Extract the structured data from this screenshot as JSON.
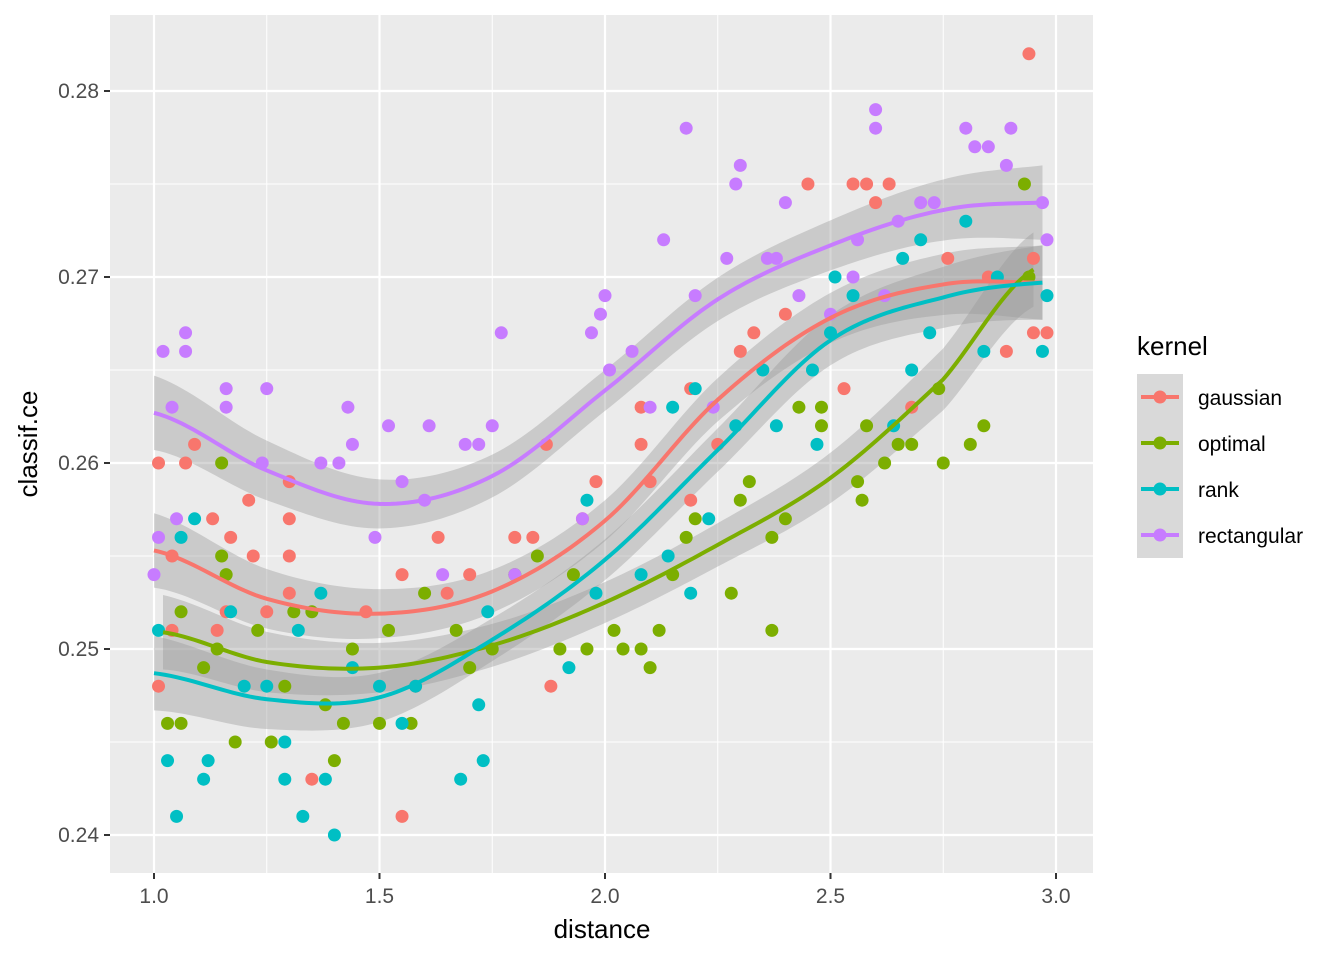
{
  "chart_data": {
    "type": "scatter",
    "title": "",
    "xlabel": "distance",
    "ylabel": "classif.ce",
    "xlim": [
      0.9,
      3.08
    ],
    "ylim": [
      0.2359,
      0.2821
    ],
    "xticks": [
      1.0,
      1.5,
      2.0,
      2.5,
      3.0
    ],
    "xtick_labels": [
      "1.0",
      "1.5",
      "2.0",
      "2.5",
      "3.0"
    ],
    "yticks": [
      0.24,
      0.25,
      0.26,
      0.27,
      0.28
    ],
    "ytick_labels": [
      "0.24",
      "0.25",
      "0.26",
      "0.27",
      "0.28"
    ],
    "grid": true,
    "legend": {
      "title": "kernel",
      "placement": "right"
    },
    "series": [
      {
        "name": "gaussian",
        "color": "#F8766D",
        "smooth": {
          "x": [
            1.0,
            1.25,
            1.5,
            1.75,
            2.0,
            2.25,
            2.5,
            2.75,
            2.97
          ],
          "y": [
            0.2553,
            0.2527,
            0.2519,
            0.2531,
            0.2569,
            0.2634,
            0.2678,
            0.2696,
            0.2697
          ]
        },
        "points": [
          [
            1.01,
            0.248
          ],
          [
            1.01,
            0.26
          ],
          [
            1.04,
            0.255
          ],
          [
            1.04,
            0.251
          ],
          [
            1.07,
            0.26
          ],
          [
            1.09,
            0.261
          ],
          [
            1.13,
            0.257
          ],
          [
            1.14,
            0.251
          ],
          [
            1.16,
            0.252
          ],
          [
            1.17,
            0.256
          ],
          [
            1.21,
            0.258
          ],
          [
            1.22,
            0.255
          ],
          [
            1.25,
            0.252
          ],
          [
            1.3,
            0.259
          ],
          [
            1.3,
            0.257
          ],
          [
            1.3,
            0.255
          ],
          [
            1.3,
            0.253
          ],
          [
            1.35,
            0.243
          ],
          [
            1.47,
            0.252
          ],
          [
            1.55,
            0.254
          ],
          [
            1.55,
            0.241
          ],
          [
            1.58,
            0.248
          ],
          [
            1.63,
            0.256
          ],
          [
            1.65,
            0.253
          ],
          [
            1.7,
            0.254
          ],
          [
            1.8,
            0.256
          ],
          [
            1.84,
            0.256
          ],
          [
            1.87,
            0.261
          ],
          [
            1.88,
            0.248
          ],
          [
            1.95,
            0.257
          ],
          [
            1.98,
            0.259
          ],
          [
            2.08,
            0.263
          ],
          [
            2.08,
            0.261
          ],
          [
            2.1,
            0.259
          ],
          [
            2.19,
            0.264
          ],
          [
            2.19,
            0.258
          ],
          [
            2.25,
            0.261
          ],
          [
            2.3,
            0.266
          ],
          [
            2.33,
            0.267
          ],
          [
            2.4,
            0.268
          ],
          [
            2.45,
            0.275
          ],
          [
            2.53,
            0.264
          ],
          [
            2.55,
            0.275
          ],
          [
            2.58,
            0.275
          ],
          [
            2.6,
            0.274
          ],
          [
            2.63,
            0.275
          ],
          [
            2.68,
            0.263
          ],
          [
            2.76,
            0.271
          ],
          [
            2.85,
            0.27
          ],
          [
            2.89,
            0.266
          ],
          [
            2.94,
            0.282
          ],
          [
            2.95,
            0.267
          ],
          [
            2.95,
            0.271
          ],
          [
            2.98,
            0.267
          ]
        ]
      },
      {
        "name": "optimal",
        "color": "#7CAE00",
        "smooth": {
          "x": [
            1.02,
            1.25,
            1.5,
            1.75,
            2.0,
            2.25,
            2.5,
            2.75,
            2.95
          ],
          "y": [
            0.2509,
            0.2493,
            0.249,
            0.2502,
            0.2525,
            0.2556,
            0.2592,
            0.2645,
            0.2704
          ]
        },
        "points": [
          [
            1.03,
            0.246
          ],
          [
            1.06,
            0.246
          ],
          [
            1.06,
            0.252
          ],
          [
            1.11,
            0.249
          ],
          [
            1.14,
            0.25
          ],
          [
            1.15,
            0.26
          ],
          [
            1.15,
            0.255
          ],
          [
            1.16,
            0.254
          ],
          [
            1.18,
            0.245
          ],
          [
            1.23,
            0.251
          ],
          [
            1.26,
            0.245
          ],
          [
            1.29,
            0.248
          ],
          [
            1.31,
            0.252
          ],
          [
            1.35,
            0.252
          ],
          [
            1.38,
            0.247
          ],
          [
            1.4,
            0.244
          ],
          [
            1.42,
            0.246
          ],
          [
            1.44,
            0.25
          ],
          [
            1.5,
            0.246
          ],
          [
            1.52,
            0.251
          ],
          [
            1.57,
            0.246
          ],
          [
            1.6,
            0.253
          ],
          [
            1.67,
            0.251
          ],
          [
            1.7,
            0.249
          ],
          [
            1.75,
            0.25
          ],
          [
            1.8,
            0.254
          ],
          [
            1.85,
            0.255
          ],
          [
            1.9,
            0.25
          ],
          [
            1.93,
            0.254
          ],
          [
            1.96,
            0.25
          ],
          [
            2.02,
            0.251
          ],
          [
            2.04,
            0.25
          ],
          [
            2.08,
            0.25
          ],
          [
            2.1,
            0.249
          ],
          [
            2.12,
            0.251
          ],
          [
            2.15,
            0.254
          ],
          [
            2.18,
            0.256
          ],
          [
            2.2,
            0.257
          ],
          [
            2.28,
            0.253
          ],
          [
            2.3,
            0.258
          ],
          [
            2.32,
            0.259
          ],
          [
            2.37,
            0.251
          ],
          [
            2.37,
            0.256
          ],
          [
            2.4,
            0.257
          ],
          [
            2.43,
            0.263
          ],
          [
            2.48,
            0.262
          ],
          [
            2.48,
            0.263
          ],
          [
            2.56,
            0.259
          ],
          [
            2.57,
            0.258
          ],
          [
            2.58,
            0.262
          ],
          [
            2.62,
            0.26
          ],
          [
            2.65,
            0.261
          ],
          [
            2.68,
            0.261
          ],
          [
            2.74,
            0.264
          ],
          [
            2.75,
            0.26
          ],
          [
            2.81,
            0.261
          ],
          [
            2.84,
            0.262
          ],
          [
            2.93,
            0.275
          ],
          [
            2.94,
            0.27
          ]
        ]
      },
      {
        "name": "rank",
        "color": "#00BFC4",
        "smooth": {
          "x": [
            1.0,
            1.25,
            1.5,
            1.75,
            2.0,
            2.25,
            2.5,
            2.75,
            2.97
          ],
          "y": [
            0.2487,
            0.2473,
            0.2474,
            0.2505,
            0.2548,
            0.2607,
            0.2666,
            0.2689,
            0.2697
          ]
        },
        "points": [
          [
            1.01,
            0.251
          ],
          [
            1.03,
            0.244
          ],
          [
            1.05,
            0.241
          ],
          [
            1.06,
            0.256
          ],
          [
            1.09,
            0.257
          ],
          [
            1.11,
            0.243
          ],
          [
            1.12,
            0.244
          ],
          [
            1.17,
            0.252
          ],
          [
            1.2,
            0.248
          ],
          [
            1.25,
            0.248
          ],
          [
            1.29,
            0.243
          ],
          [
            1.29,
            0.245
          ],
          [
            1.32,
            0.251
          ],
          [
            1.33,
            0.241
          ],
          [
            1.37,
            0.253
          ],
          [
            1.38,
            0.243
          ],
          [
            1.4,
            0.24
          ],
          [
            1.44,
            0.249
          ],
          [
            1.5,
            0.248
          ],
          [
            1.55,
            0.246
          ],
          [
            1.58,
            0.248
          ],
          [
            1.68,
            0.243
          ],
          [
            1.72,
            0.247
          ],
          [
            1.73,
            0.244
          ],
          [
            1.74,
            0.252
          ],
          [
            1.92,
            0.249
          ],
          [
            1.96,
            0.258
          ],
          [
            1.98,
            0.253
          ],
          [
            2.08,
            0.254
          ],
          [
            2.14,
            0.255
          ],
          [
            2.15,
            0.263
          ],
          [
            2.19,
            0.253
          ],
          [
            2.2,
            0.264
          ],
          [
            2.23,
            0.257
          ],
          [
            2.29,
            0.262
          ],
          [
            2.35,
            0.265
          ],
          [
            2.38,
            0.262
          ],
          [
            2.46,
            0.265
          ],
          [
            2.47,
            0.261
          ],
          [
            2.5,
            0.267
          ],
          [
            2.51,
            0.27
          ],
          [
            2.55,
            0.269
          ],
          [
            2.64,
            0.262
          ],
          [
            2.66,
            0.271
          ],
          [
            2.68,
            0.265
          ],
          [
            2.7,
            0.272
          ],
          [
            2.72,
            0.267
          ],
          [
            2.8,
            0.273
          ],
          [
            2.84,
            0.266
          ],
          [
            2.87,
            0.27
          ],
          [
            2.97,
            0.266
          ],
          [
            2.98,
            0.269
          ]
        ]
      },
      {
        "name": "rectangular",
        "color": "#C77CFF",
        "smooth": {
          "x": [
            1.0,
            1.25,
            1.5,
            1.75,
            2.0,
            2.25,
            2.5,
            2.75,
            2.97
          ],
          "y": [
            0.2627,
            0.2596,
            0.2578,
            0.2593,
            0.2639,
            0.2688,
            0.2717,
            0.2736,
            0.274
          ]
        },
        "points": [
          [
            1.0,
            0.254
          ],
          [
            1.01,
            0.256
          ],
          [
            1.02,
            0.266
          ],
          [
            1.04,
            0.263
          ],
          [
            1.05,
            0.257
          ],
          [
            1.07,
            0.267
          ],
          [
            1.07,
            0.266
          ],
          [
            1.16,
            0.264
          ],
          [
            1.16,
            0.263
          ],
          [
            1.24,
            0.26
          ],
          [
            1.25,
            0.264
          ],
          [
            1.37,
            0.26
          ],
          [
            1.41,
            0.26
          ],
          [
            1.43,
            0.263
          ],
          [
            1.44,
            0.261
          ],
          [
            1.49,
            0.256
          ],
          [
            1.52,
            0.262
          ],
          [
            1.55,
            0.259
          ],
          [
            1.6,
            0.258
          ],
          [
            1.61,
            0.262
          ],
          [
            1.64,
            0.254
          ],
          [
            1.69,
            0.261
          ],
          [
            1.72,
            0.261
          ],
          [
            1.75,
            0.262
          ],
          [
            1.77,
            0.267
          ],
          [
            1.8,
            0.254
          ],
          [
            1.95,
            0.257
          ],
          [
            1.97,
            0.267
          ],
          [
            1.99,
            0.268
          ],
          [
            2.0,
            0.269
          ],
          [
            2.01,
            0.265
          ],
          [
            2.06,
            0.266
          ],
          [
            2.1,
            0.263
          ],
          [
            2.13,
            0.272
          ],
          [
            2.18,
            0.278
          ],
          [
            2.2,
            0.269
          ],
          [
            2.24,
            0.263
          ],
          [
            2.27,
            0.271
          ],
          [
            2.29,
            0.275
          ],
          [
            2.3,
            0.276
          ],
          [
            2.36,
            0.271
          ],
          [
            2.38,
            0.271
          ],
          [
            2.4,
            0.274
          ],
          [
            2.43,
            0.269
          ],
          [
            2.5,
            0.268
          ],
          [
            2.55,
            0.27
          ],
          [
            2.56,
            0.272
          ],
          [
            2.6,
            0.279
          ],
          [
            2.6,
            0.278
          ],
          [
            2.62,
            0.269
          ],
          [
            2.65,
            0.273
          ],
          [
            2.7,
            0.274
          ],
          [
            2.73,
            0.274
          ],
          [
            2.8,
            0.278
          ],
          [
            2.82,
            0.277
          ],
          [
            2.85,
            0.277
          ],
          [
            2.89,
            0.276
          ],
          [
            2.9,
            0.278
          ],
          [
            2.97,
            0.274
          ],
          [
            2.98,
            0.272
          ]
        ]
      }
    ]
  }
}
